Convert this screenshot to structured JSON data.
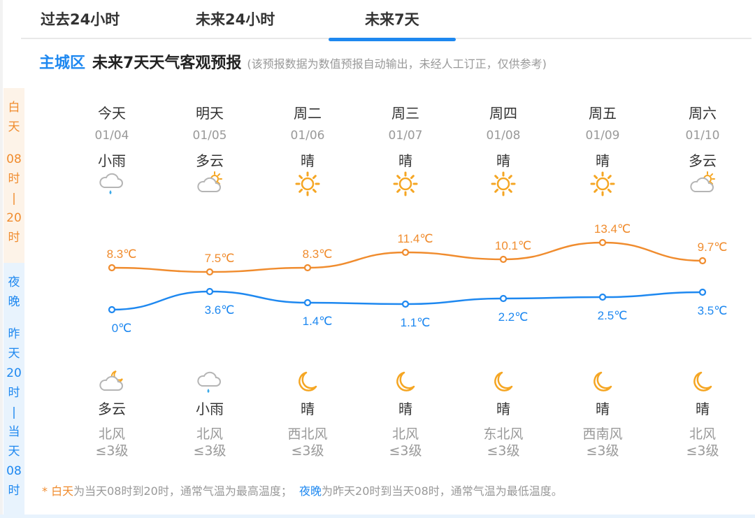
{
  "tabs": [
    {
      "label": "过去24小时",
      "active": false
    },
    {
      "label": "未来24小时",
      "active": false
    },
    {
      "label": "未来7天",
      "active": true
    }
  ],
  "heading": {
    "district": "主城区",
    "title": "未来7天天气客观预报",
    "note": "(该预报数据为数值预报自动输出，未经人工订正，仅供参考)"
  },
  "side_labels": {
    "day": [
      "白",
      "天",
      "",
      "08",
      "时",
      "|",
      "20",
      "时"
    ],
    "night": [
      "夜",
      "晚",
      "",
      "昨",
      "天",
      "20",
      "时",
      "|",
      "当",
      "天",
      "08",
      "时"
    ]
  },
  "colors": {
    "day": "#f08c2e",
    "night": "#1e88f0",
    "accent": "#1e88f0"
  },
  "days": [
    {
      "name": "今天",
      "date": "01/04",
      "day_weather": "小雨",
      "day_icon": "light-rain-icon",
      "high": "8.3℃",
      "low": "0℃",
      "night_icon": "cloudy-night-icon",
      "night_weather": "多云",
      "wind_dir": "北风",
      "wind_level": "≤3级"
    },
    {
      "name": "明天",
      "date": "01/05",
      "day_weather": "多云",
      "day_icon": "partly-cloudy-day-icon",
      "high": "7.5℃",
      "low": "3.6℃",
      "night_icon": "light-rain-icon",
      "night_weather": "小雨",
      "wind_dir": "北风",
      "wind_level": "≤3级"
    },
    {
      "name": "周二",
      "date": "01/06",
      "day_weather": "晴",
      "day_icon": "sun-icon",
      "high": "8.3℃",
      "low": "1.4℃",
      "night_icon": "moon-icon",
      "night_weather": "晴",
      "wind_dir": "西北风",
      "wind_level": "≤3级"
    },
    {
      "name": "周三",
      "date": "01/07",
      "day_weather": "晴",
      "day_icon": "sun-icon",
      "high": "11.4℃",
      "low": "1.1℃",
      "night_icon": "moon-icon",
      "night_weather": "晴",
      "wind_dir": "北风",
      "wind_level": "≤3级"
    },
    {
      "name": "周四",
      "date": "01/08",
      "day_weather": "晴",
      "day_icon": "sun-icon",
      "high": "10.1℃",
      "low": "2.2℃",
      "night_icon": "moon-icon",
      "night_weather": "晴",
      "wind_dir": "东北风",
      "wind_level": "≤3级"
    },
    {
      "name": "周五",
      "date": "01/09",
      "day_weather": "晴",
      "day_icon": "sun-icon",
      "high": "13.4℃",
      "low": "2.5℃",
      "night_icon": "moon-icon",
      "night_weather": "晴",
      "wind_dir": "西南风",
      "wind_level": "≤3级"
    },
    {
      "name": "周六",
      "date": "01/10",
      "day_weather": "多云",
      "day_icon": "partly-cloudy-day-icon",
      "high": "9.7℃",
      "low": "3.5℃",
      "night_icon": "moon-icon",
      "night_weather": "晴",
      "wind_dir": "北风",
      "wind_level": "≤3级"
    }
  ],
  "chart_data": {
    "type": "line",
    "categories": [
      "01/04",
      "01/05",
      "01/06",
      "01/07",
      "01/08",
      "01/09",
      "01/10"
    ],
    "series": [
      {
        "name": "白天",
        "values": [
          8.3,
          7.5,
          8.3,
          11.4,
          10.1,
          13.4,
          9.7
        ],
        "color": "#f08c2e"
      },
      {
        "name": "夜晚",
        "values": [
          0,
          3.6,
          1.4,
          1.1,
          2.2,
          2.5,
          3.5
        ],
        "color": "#1e88f0"
      }
    ],
    "title": "未来7天天气客观预报",
    "xlabel": "",
    "ylabel": "℃"
  },
  "footnote": {
    "star": "* ",
    "day_label": "白天",
    "day_text": "为当天08时到20时，通常气温为最高温度；",
    "night_label": "夜晚",
    "night_text": "为昨天20时到当天08时，通常气温为最低温度。"
  }
}
